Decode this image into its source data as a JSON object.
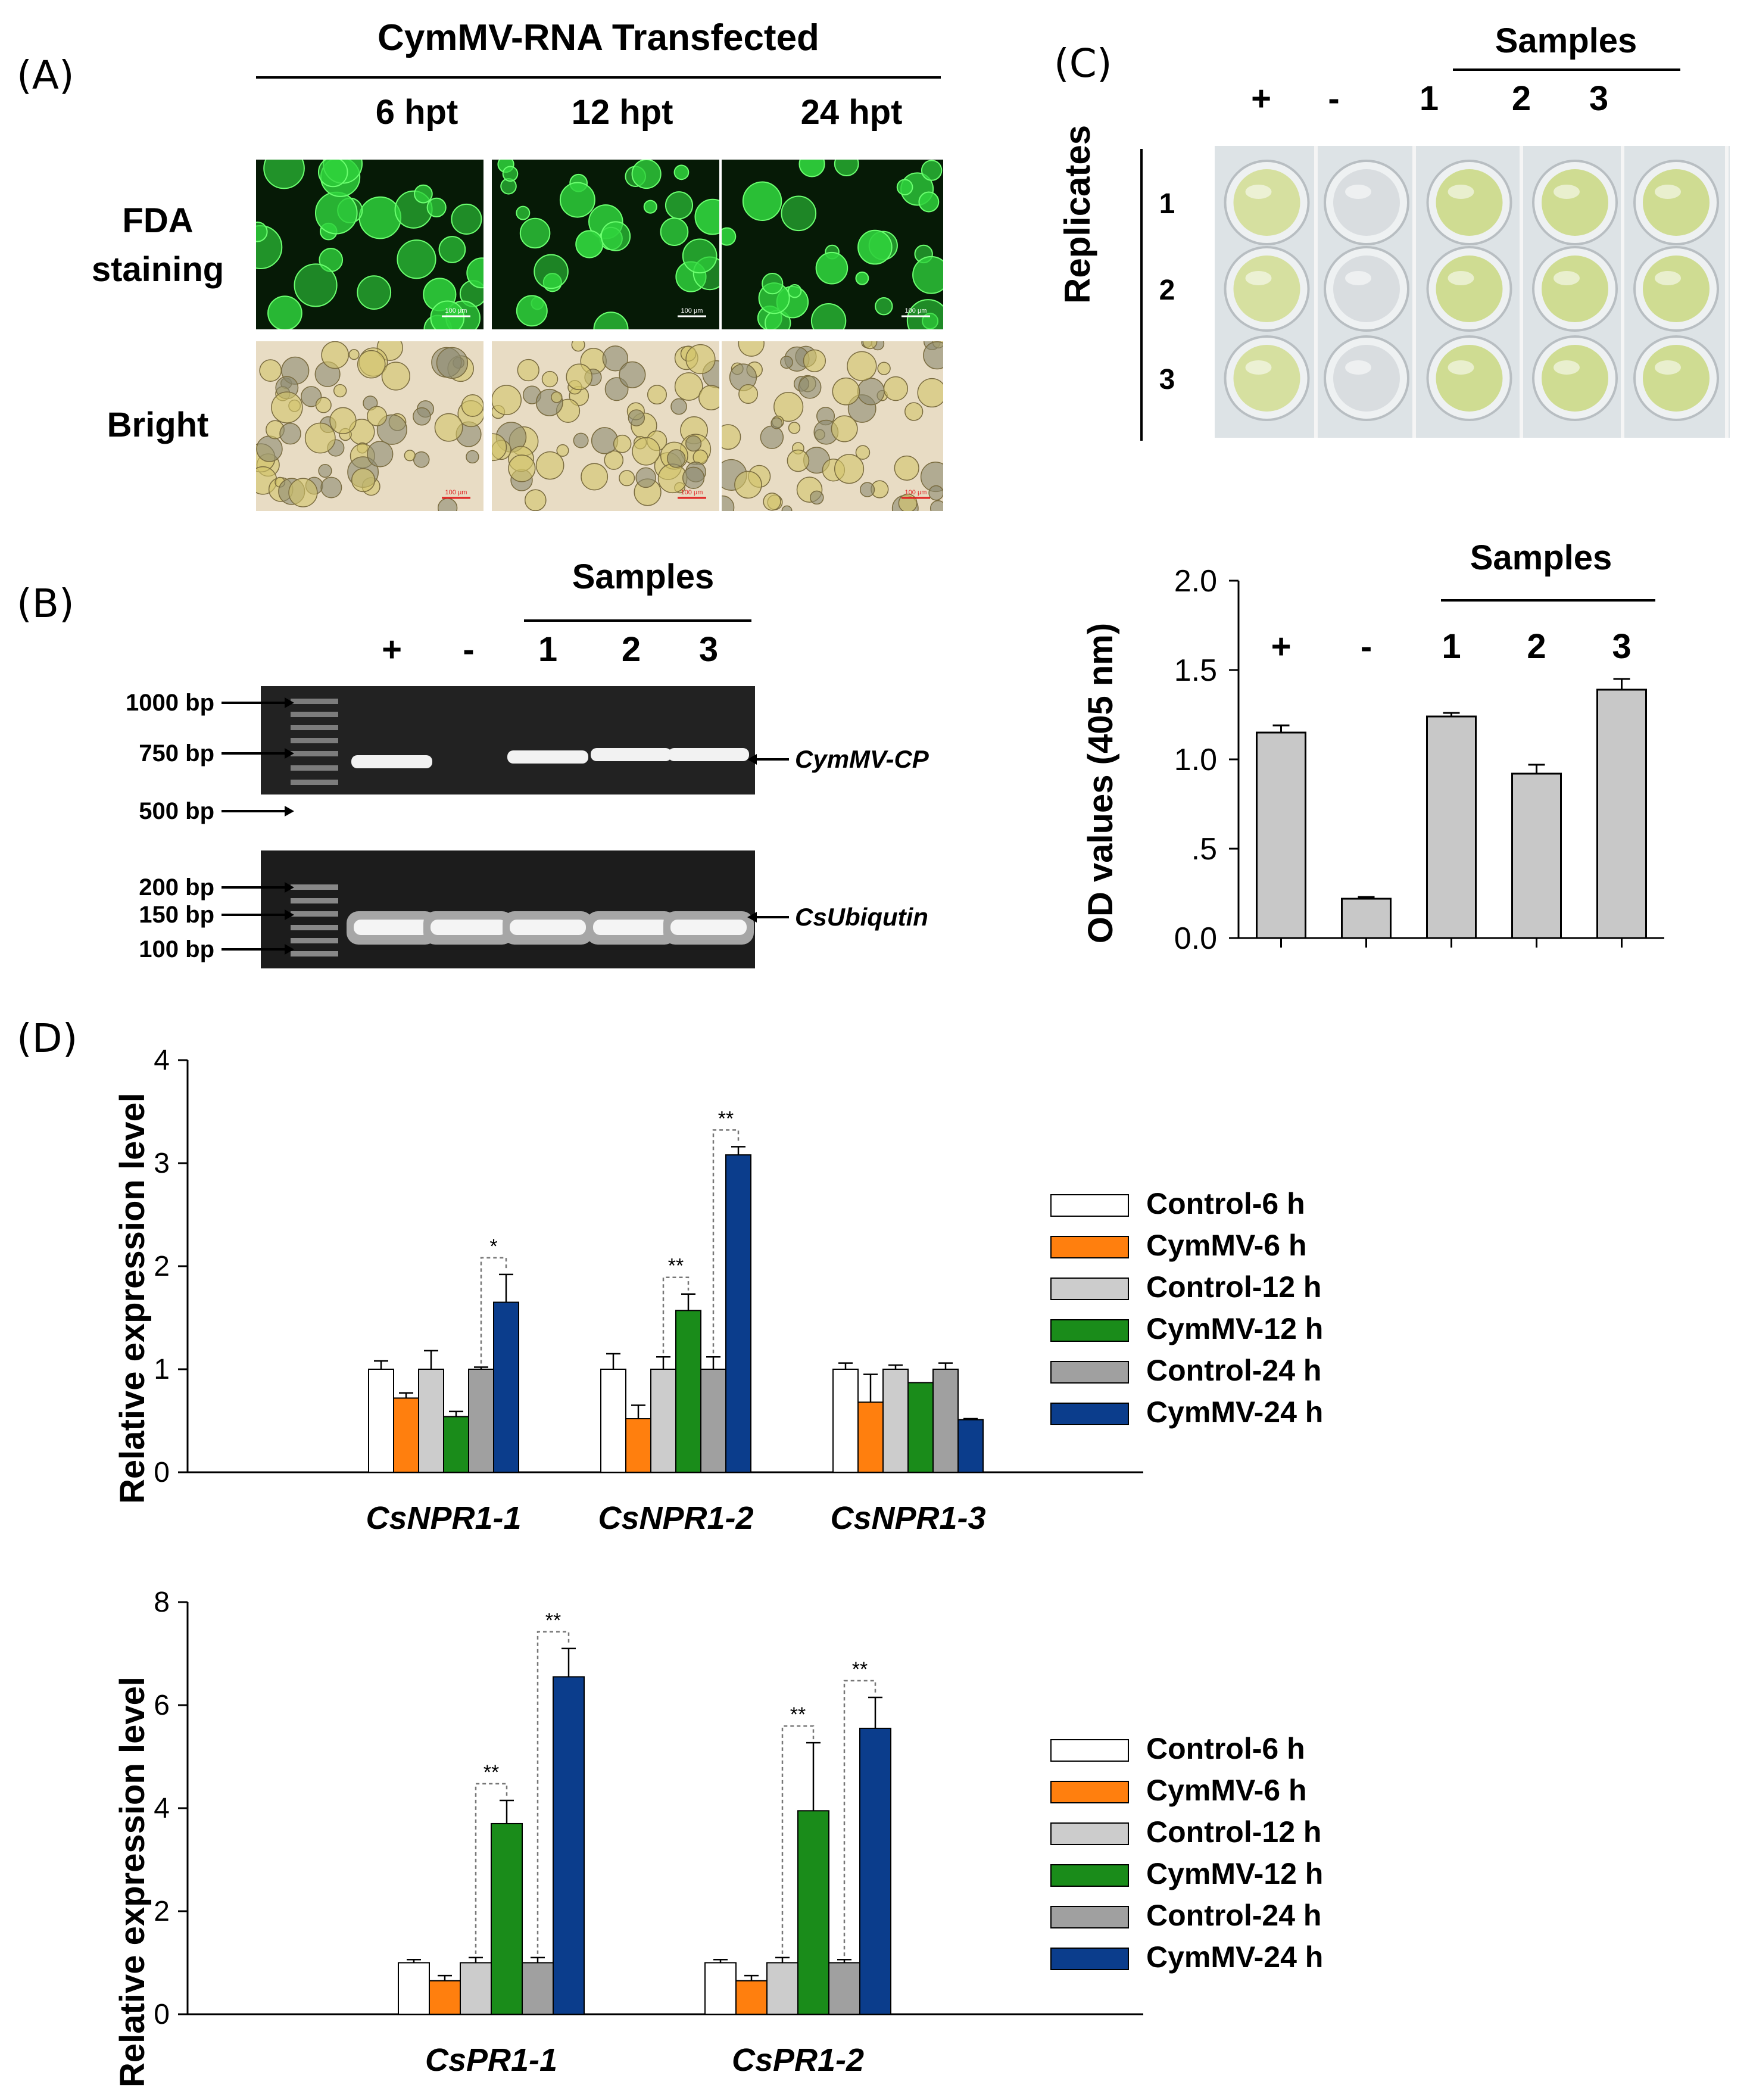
{
  "panel_a": {
    "label": "(A)",
    "header": "CymMV-RNA Transfected",
    "timepoints": [
      "6 hpt",
      "12 hpt",
      "24 hpt"
    ],
    "rows": [
      "FDA staining",
      "Bright"
    ],
    "fda_scale": "100 µm",
    "bright_scale": "100 µm",
    "fda_colors": {
      "bg": "#061a06",
      "cell": "#2fd23c"
    },
    "bright_colors": {
      "bg": "#e8dcc4",
      "cell": "#d2c46a"
    }
  },
  "panel_b": {
    "label": "(B)",
    "samples_header": "Samples",
    "lanes": [
      "+",
      "-",
      "1",
      "2",
      "3"
    ],
    "ladder_top": [
      "1000 bp",
      "750 bp",
      "500 bp"
    ],
    "ladder_bottom": [
      "200 bp",
      "150 bp",
      "100 bp"
    ],
    "band_top": "CymMV-CP",
    "band_bottom": "CsUbiqutin"
  },
  "panel_c": {
    "label": "(C)",
    "samples_header": "Samples",
    "columns": [
      "+",
      "-",
      "1",
      "2",
      "3"
    ],
    "replicates_label": "Replicates",
    "replicate_ids": [
      "1",
      "2",
      "3"
    ],
    "well_colors": {
      "positive": "#d6e0a0",
      "negative": "#d9dde0",
      "sample": "#cfdc92"
    },
    "bar_chart": {
      "samples_header": "Samples",
      "bar_labels": [
        "+",
        "-",
        "1",
        "2",
        "3"
      ],
      "ytick_labels": [
        "0.0",
        ".5",
        "1.0",
        "1.5",
        "2.0"
      ]
    }
  },
  "panel_d": {
    "label": "(D)",
    "legend": [
      "Control-6 h",
      "CymMV-6 h",
      "Control-12 h",
      "CymMV-12 h",
      "Control-24 h",
      "CymMV-24 h"
    ],
    "colors": [
      "#ffffff",
      "#ff7f0e",
      "#cccccc",
      "#1a8c1a",
      "#a0a0a0",
      "#0b3d8c"
    ],
    "sig_labels": [
      "*",
      "**"
    ]
  },
  "chart_data": [
    {
      "type": "bar",
      "panel": "C",
      "categories": [
        "+",
        "-",
        "1",
        "2",
        "3"
      ],
      "values": [
        1.15,
        0.22,
        1.24,
        0.92,
        1.39
      ],
      "errors": [
        0.04,
        0.01,
        0.02,
        0.05,
        0.06
      ],
      "ylabel": "OD values (405 nm)",
      "ylim": [
        0,
        2
      ],
      "yticks": [
        0,
        0.5,
        1.0,
        1.5,
        2.0
      ],
      "bar_color": "#c8c8c8"
    },
    {
      "type": "bar",
      "panel": "D-top",
      "categories": [
        "CsNPR1-1",
        "CsNPR1-2",
        "CsNPR1-3"
      ],
      "ylabel": "Relative expression level",
      "ylim": [
        0,
        4
      ],
      "yticks": [
        0,
        1,
        2,
        3,
        4
      ],
      "series": [
        {
          "name": "Control-6 h",
          "values": [
            1.0,
            1.0,
            1.0
          ],
          "errors": [
            0.08,
            0.15,
            0.06
          ]
        },
        {
          "name": "CymMV-6 h",
          "values": [
            0.72,
            0.52,
            0.68
          ],
          "errors": [
            0.05,
            0.13,
            0.27
          ]
        },
        {
          "name": "Control-12 h",
          "values": [
            1.0,
            1.0,
            1.0
          ],
          "errors": [
            0.18,
            0.12,
            0.04
          ]
        },
        {
          "name": "CymMV-12 h",
          "values": [
            0.54,
            1.57,
            0.87
          ],
          "errors": [
            0.05,
            0.16,
            0.0
          ]
        },
        {
          "name": "Control-24 h",
          "values": [
            1.0,
            1.0,
            1.0
          ],
          "errors": [
            0.02,
            0.12,
            0.06
          ]
        },
        {
          "name": "CymMV-24 h",
          "values": [
            1.65,
            3.08,
            0.51
          ],
          "errors": [
            0.27,
            0.08,
            0.01
          ]
        }
      ],
      "significance": [
        {
          "category": 0,
          "from": 4,
          "to": 5,
          "label": "*"
        },
        {
          "category": 1,
          "from": 2,
          "to": 3,
          "label": "**"
        },
        {
          "category": 1,
          "from": 4,
          "to": 5,
          "label": "**"
        }
      ]
    },
    {
      "type": "bar",
      "panel": "D-bottom",
      "categories": [
        "CsPR1-1",
        "CsPR1-2"
      ],
      "ylabel": "Relative expression level",
      "ylim": [
        0,
        8
      ],
      "yticks": [
        0,
        2,
        4,
        6,
        8
      ],
      "series": [
        {
          "name": "Control-6 h",
          "values": [
            1.0,
            1.0
          ],
          "errors": [
            0.06,
            0.06
          ]
        },
        {
          "name": "CymMV-6 h",
          "values": [
            0.65,
            0.65
          ],
          "errors": [
            0.1,
            0.1
          ]
        },
        {
          "name": "Control-12 h",
          "values": [
            1.0,
            1.0
          ],
          "errors": [
            0.1,
            0.1
          ]
        },
        {
          "name": "CymMV-12 h",
          "values": [
            3.7,
            3.95
          ],
          "errors": [
            0.45,
            1.32
          ]
        },
        {
          "name": "Control-24 h",
          "values": [
            1.0,
            1.0
          ],
          "errors": [
            0.1,
            0.06
          ]
        },
        {
          "name": "CymMV-24 h",
          "values": [
            6.55,
            5.55
          ],
          "errors": [
            0.55,
            0.6
          ]
        }
      ],
      "significance": [
        {
          "category": 0,
          "from": 2,
          "to": 3,
          "label": "**"
        },
        {
          "category": 0,
          "from": 4,
          "to": 5,
          "label": "**"
        },
        {
          "category": 1,
          "from": 2,
          "to": 3,
          "label": "**"
        },
        {
          "category": 1,
          "from": 4,
          "to": 5,
          "label": "**"
        }
      ]
    }
  ]
}
